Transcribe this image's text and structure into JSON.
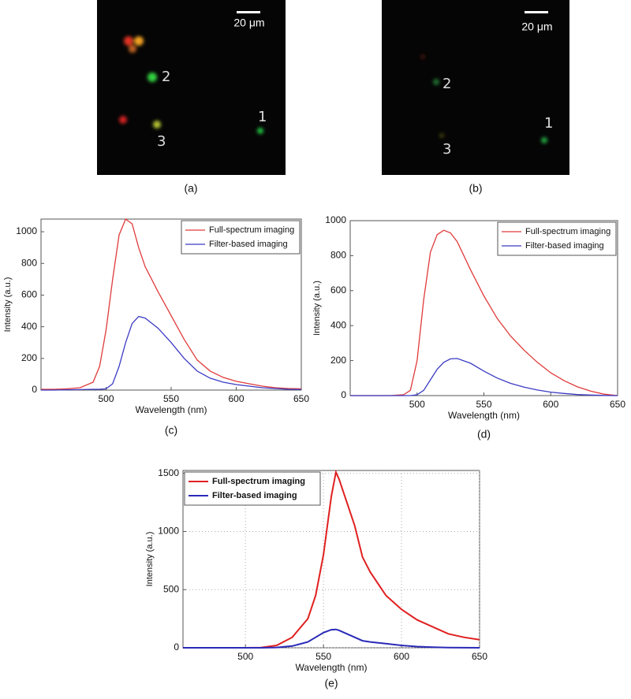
{
  "images": [
    {
      "scale_bar": "20 μm",
      "labels": [
        "2",
        "1",
        "3"
      ],
      "caption": "(a)"
    },
    {
      "scale_bar": "20 μm",
      "labels": [
        "2",
        "1",
        "3"
      ],
      "caption": "(b)"
    }
  ],
  "chart_data": [
    {
      "type": "line",
      "caption": "(c)",
      "x_label": "Wavelength (nm)",
      "y_label": "Intensity (a.u.)",
      "x": [
        450,
        460,
        470,
        480,
        490,
        495,
        500,
        505,
        510,
        515,
        520,
        525,
        530,
        540,
        550,
        560,
        570,
        580,
        590,
        600,
        610,
        620,
        630,
        640,
        650
      ],
      "series": [
        {
          "name": "Full-spectrum imaging",
          "color": "#e03a3a",
          "values": [
            5,
            5,
            8,
            15,
            50,
            150,
            380,
            700,
            980,
            1080,
            1050,
            900,
            780,
            620,
            470,
            320,
            190,
            120,
            80,
            55,
            40,
            25,
            15,
            10,
            8
          ]
        },
        {
          "name": "Filter-based imaging",
          "color": "#3b3bc4",
          "values": [
            0,
            0,
            2,
            3,
            5,
            5,
            8,
            40,
            150,
            300,
            420,
            465,
            455,
            390,
            300,
            200,
            120,
            75,
            50,
            35,
            25,
            15,
            10,
            5,
            3
          ]
        }
      ],
      "xlim": [
        450,
        650
      ],
      "xticks": [
        500,
        550,
        600,
        650
      ],
      "ylim": [
        0,
        1080
      ],
      "yticks": [
        0,
        200,
        400,
        600,
        800,
        1000
      ],
      "grid": false,
      "legend": "northeast",
      "legend_bold": false
    },
    {
      "type": "line",
      "caption": "(d)",
      "x_label": "Wavelength (nm)",
      "y_label": "Intensity (a.u.)",
      "x": [
        450,
        460,
        470,
        480,
        490,
        495,
        500,
        505,
        510,
        515,
        520,
        525,
        530,
        540,
        550,
        560,
        570,
        580,
        590,
        600,
        610,
        620,
        630,
        640,
        650
      ],
      "series": [
        {
          "name": "Full-spectrum imaging",
          "color": "#e03a3a",
          "values": [
            0,
            0,
            0,
            0,
            5,
            30,
            200,
            550,
            820,
            920,
            945,
            930,
            880,
            720,
            570,
            440,
            340,
            260,
            190,
            130,
            85,
            50,
            25,
            8,
            0
          ]
        },
        {
          "name": "Filter-based imaging",
          "color": "#3b3bc4",
          "values": [
            0,
            0,
            0,
            0,
            0,
            0,
            5,
            30,
            90,
            150,
            190,
            210,
            212,
            185,
            140,
            100,
            70,
            48,
            32,
            20,
            12,
            6,
            3,
            1,
            0
          ]
        }
      ],
      "xlim": [
        450,
        650
      ],
      "xticks": [
        500,
        550,
        600,
        650
      ],
      "ylim": [
        0,
        1000
      ],
      "yticks": [
        0,
        200,
        400,
        600,
        800,
        1000
      ],
      "grid": false,
      "legend": "northeast",
      "legend_bold": false
    },
    {
      "type": "line",
      "caption": "(e)",
      "x_label": "Wavelength (nm)",
      "y_label": "Intensity (a.u.)",
      "x": [
        460,
        470,
        480,
        490,
        500,
        510,
        520,
        530,
        540,
        545,
        550,
        555,
        558,
        560,
        565,
        570,
        575,
        580,
        590,
        600,
        610,
        620,
        630,
        640,
        650
      ],
      "series": [
        {
          "name": "Full-spectrum imaging",
          "color": "#e02020",
          "values": [
            0,
            0,
            0,
            0,
            0,
            2,
            20,
            90,
            250,
            450,
            800,
            1300,
            1510,
            1450,
            1250,
            1050,
            780,
            650,
            450,
            330,
            240,
            180,
            120,
            90,
            70
          ]
        },
        {
          "name": "Filter-based imaging",
          "color": "#2a2ab8",
          "values": [
            0,
            0,
            0,
            0,
            0,
            0,
            3,
            15,
            50,
            90,
            130,
            155,
            158,
            150,
            120,
            90,
            60,
            50,
            35,
            20,
            10,
            5,
            2,
            1,
            0
          ]
        }
      ],
      "xlim": [
        460,
        650
      ],
      "xticks": [
        500,
        550,
        600,
        650
      ],
      "ylim": [
        0,
        1525
      ],
      "yticks": [
        0,
        500,
        1000,
        1500
      ],
      "grid": true,
      "legend": "northwest",
      "legend_bold": true
    }
  ]
}
